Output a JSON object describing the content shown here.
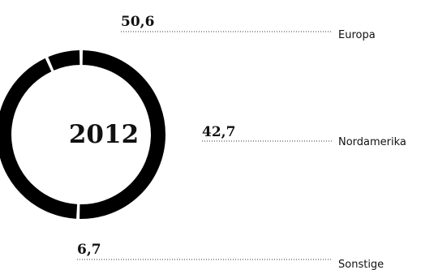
{
  "chart_data": {
    "type": "pie",
    "variant": "donut",
    "center_label": "2012",
    "categories": [
      "Europa",
      "Nordamerika",
      "Sonstige"
    ],
    "values": [
      50.6,
      42.7,
      6.7
    ],
    "value_labels": [
      "50,6",
      "42,7",
      "6,7"
    ],
    "colors": [
      "#000000",
      "#000000",
      "#000000"
    ],
    "legend": "none",
    "labels": "leader-lines-right"
  }
}
